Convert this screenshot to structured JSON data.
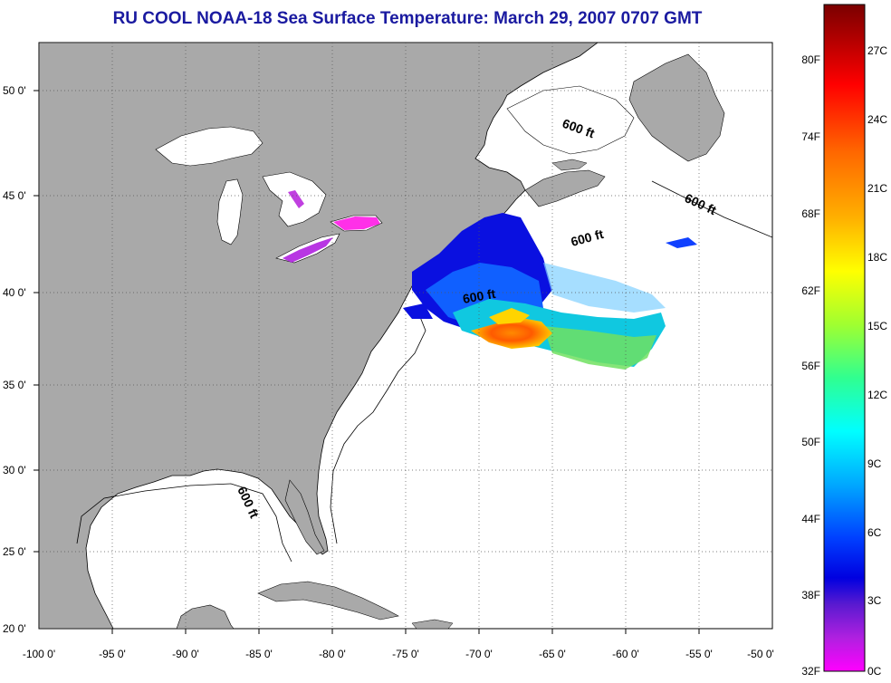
{
  "title": "RU COOL  NOAA-18  Sea Surface Temperature:  March 29, 2007 0707 GMT",
  "x_ticks": [
    "-100 0'",
    "-95 0'",
    "-90 0'",
    "-85 0'",
    "-80 0'",
    "-75 0'",
    "-70 0'",
    "-65 0'",
    "-60 0'",
    "-55 0'",
    "-50 0'"
  ],
  "y_ticks": [
    "50 0'",
    "45 0'",
    "40 0'",
    "35 0'",
    "30 0'",
    "25 0'",
    "20 0'"
  ],
  "depth_label": "600 ft",
  "colorbar": {
    "f_labels": [
      "80F",
      "74F",
      "68F",
      "62F",
      "56F",
      "50F",
      "44F",
      "38F",
      "32F"
    ],
    "c_labels": [
      "27C",
      "24C",
      "21C",
      "18C",
      "15C",
      "12C",
      "9C",
      "6C",
      "3C",
      "0C"
    ]
  },
  "colors": {
    "land": "#a9a9a9",
    "title": "#1a1aa0",
    "grid": "#555555"
  }
}
